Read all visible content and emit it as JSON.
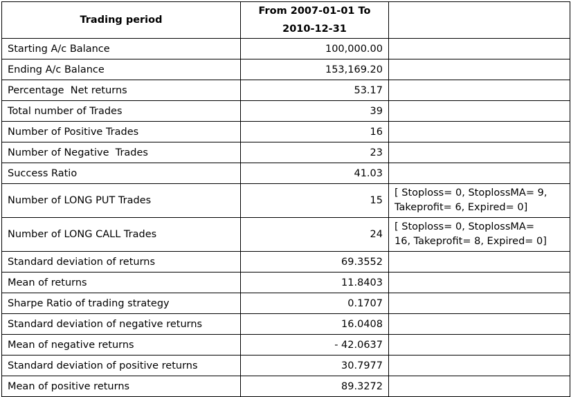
{
  "header": {
    "label": "Trading period",
    "period_line1": "From 2007-01-01 To",
    "period_line2": "2010-12-31",
    "extra": ""
  },
  "rows": [
    {
      "metric": "Starting A/c Balance",
      "value": "100,000.00",
      "note": ""
    },
    {
      "metric": "Ending A/c Balance",
      "value": "153,169.20",
      "note": ""
    },
    {
      "metric": "Percentage  Net returns",
      "value": "53.17",
      "note": ""
    },
    {
      "metric": "Total number of Trades",
      "value": "39",
      "note": ""
    },
    {
      "metric": "Number of Positive Trades",
      "value": "16",
      "note": ""
    },
    {
      "metric": "Number of Negative  Trades",
      "value": "23",
      "note": ""
    },
    {
      "metric": "Success Ratio",
      "value": "41.03",
      "note": ""
    },
    {
      "metric": "Number of LONG PUT Trades",
      "value": "15",
      "note_line1": "[ Stoploss= 0, StoplossMA= 9,",
      "note_line2": "Takeprofit= 6, Expired= 0]"
    },
    {
      "metric": "Number of LONG CALL Trades",
      "value": "24",
      "note_line1": "[ Stoploss= 0, StoplossMA=",
      "note_line2": "16, Takeprofit= 8, Expired= 0]"
    },
    {
      "metric": "Standard deviation of returns",
      "value": "69.3552",
      "note": ""
    },
    {
      "metric": "Mean of returns",
      "value": "11.8403",
      "note": ""
    },
    {
      "metric": "Sharpe Ratio of trading strategy",
      "value": "0.1707",
      "note": ""
    },
    {
      "metric": "Standard deviation of negative returns",
      "value": "16.0408",
      "note": ""
    },
    {
      "metric": "Mean of negative returns",
      "value": "- 42.0637",
      "note": ""
    },
    {
      "metric": "Standard deviation of positive returns",
      "value": "30.7977",
      "note": ""
    },
    {
      "metric": "Mean of positive returns",
      "value": "89.3272",
      "note": ""
    }
  ]
}
